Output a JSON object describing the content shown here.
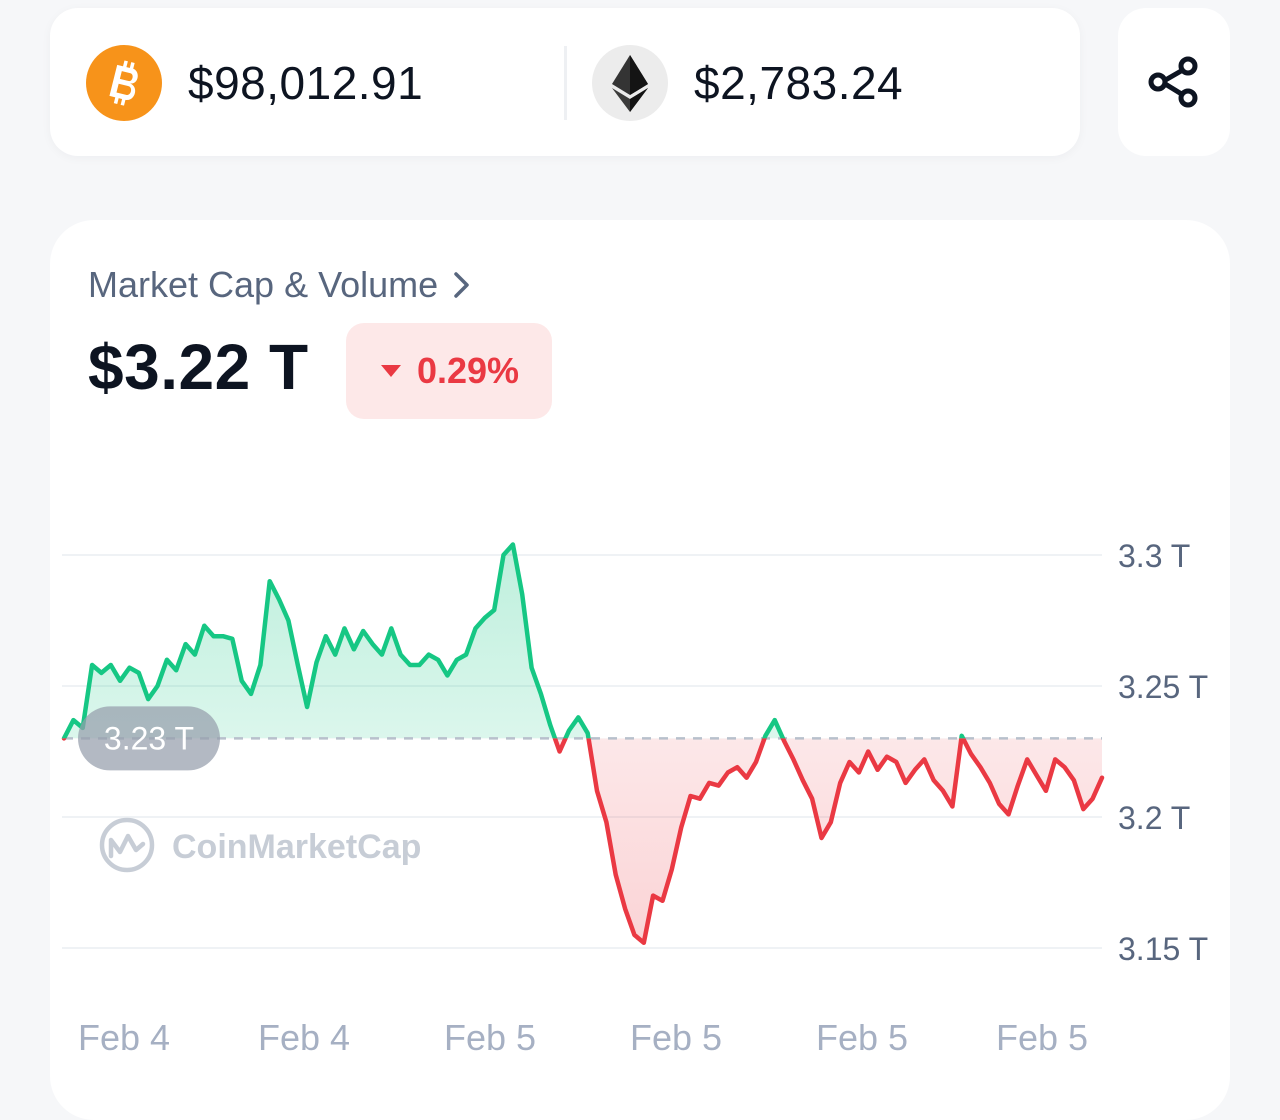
{
  "ticker": {
    "btc": {
      "icon": "bitcoin-icon",
      "price": "$98,012.91",
      "color": "#f7931a"
    },
    "eth": {
      "icon": "ethereum-icon",
      "price": "$2,783.24"
    }
  },
  "share": {
    "icon": "share-icon"
  },
  "market": {
    "title": "Market Cap & Volume",
    "value": "$3.22 T",
    "change": "0.29%",
    "change_direction": "down"
  },
  "watermark": "CoinMarketCap",
  "chart_data": {
    "type": "line",
    "x_labels": [
      "Feb 4",
      "Feb 4",
      "Feb 5",
      "Feb 5",
      "Feb 5",
      "Feb 5"
    ],
    "y_ticks": [
      {
        "value": 3.3,
        "label": "3.3 T"
      },
      {
        "value": 3.25,
        "label": "3.25 T"
      },
      {
        "value": 3.2,
        "label": "3.2 T"
      },
      {
        "value": 3.15,
        "label": "3.15 T"
      }
    ],
    "ylim": [
      3.15,
      3.3
    ],
    "baseline": {
      "value": 3.23,
      "label": "3.23 T"
    },
    "unit": "T",
    "colors": {
      "up": "#16c784",
      "down": "#ea3943"
    },
    "values": [
      3.23,
      3.237,
      3.234,
      3.258,
      3.255,
      3.258,
      3.252,
      3.257,
      3.255,
      3.245,
      3.25,
      3.26,
      3.256,
      3.266,
      3.262,
      3.273,
      3.269,
      3.269,
      3.268,
      3.252,
      3.247,
      3.258,
      3.29,
      3.283,
      3.275,
      3.258,
      3.242,
      3.259,
      3.269,
      3.262,
      3.272,
      3.264,
      3.271,
      3.266,
      3.262,
      3.272,
      3.262,
      3.258,
      3.258,
      3.262,
      3.26,
      3.254,
      3.26,
      3.262,
      3.272,
      3.276,
      3.279,
      3.3,
      3.304,
      3.285,
      3.257,
      3.247,
      3.235,
      3.225,
      3.233,
      3.238,
      3.232,
      3.21,
      3.198,
      3.178,
      3.165,
      3.155,
      3.152,
      3.17,
      3.168,
      3.18,
      3.196,
      3.208,
      3.207,
      3.213,
      3.212,
      3.217,
      3.219,
      3.215,
      3.221,
      3.231,
      3.237,
      3.229,
      3.222,
      3.214,
      3.207,
      3.192,
      3.198,
      3.213,
      3.221,
      3.217,
      3.225,
      3.218,
      3.223,
      3.221,
      3.213,
      3.218,
      3.222,
      3.214,
      3.21,
      3.204,
      3.231,
      3.224,
      3.219,
      3.213,
      3.205,
      3.201,
      3.212,
      3.222,
      3.216,
      3.21,
      3.222,
      3.219,
      3.214,
      3.203,
      3.207,
      3.215
    ],
    "grid": true
  }
}
